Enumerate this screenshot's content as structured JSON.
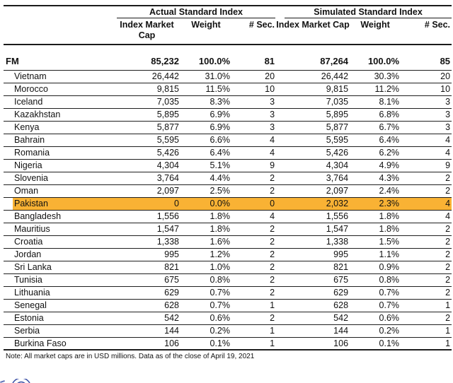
{
  "table": {
    "group_headers": [
      "Actual Standard Index",
      "Simulated Standard Index"
    ],
    "sub_headers": [
      "Index Market Cap",
      "Weight",
      "# Sec."
    ],
    "total_row": {
      "label": "FM",
      "values": [
        "85,232",
        "100.0%",
        "81",
        "87,264",
        "100.0%",
        "85"
      ]
    },
    "rows": [
      {
        "country": "Vietnam",
        "values": [
          "26,442",
          "31.0%",
          "20",
          "26,442",
          "30.3%",
          "20"
        ],
        "highlight": false
      },
      {
        "country": "Morocco",
        "values": [
          "9,815",
          "11.5%",
          "10",
          "9,815",
          "11.2%",
          "10"
        ],
        "highlight": false
      },
      {
        "country": "Iceland",
        "values": [
          "7,035",
          "8.3%",
          "3",
          "7,035",
          "8.1%",
          "3"
        ],
        "highlight": false
      },
      {
        "country": "Kazakhstan",
        "values": [
          "5,895",
          "6.9%",
          "3",
          "5,895",
          "6.8%",
          "3"
        ],
        "highlight": false
      },
      {
        "country": "Kenya",
        "values": [
          "5,877",
          "6.9%",
          "3",
          "5,877",
          "6.7%",
          "3"
        ],
        "highlight": false
      },
      {
        "country": "Bahrain",
        "values": [
          "5,595",
          "6.6%",
          "4",
          "5,595",
          "6.4%",
          "4"
        ],
        "highlight": false
      },
      {
        "country": "Romania",
        "values": [
          "5,426",
          "6.4%",
          "4",
          "5,426",
          "6.2%",
          "4"
        ],
        "highlight": false
      },
      {
        "country": "Nigeria",
        "values": [
          "4,304",
          "5.1%",
          "9",
          "4,304",
          "4.9%",
          "9"
        ],
        "highlight": false
      },
      {
        "country": "Slovenia",
        "values": [
          "3,764",
          "4.4%",
          "2",
          "3,764",
          "4.3%",
          "2"
        ],
        "highlight": false
      },
      {
        "country": "Oman",
        "values": [
          "2,097",
          "2.5%",
          "2",
          "2,097",
          "2.4%",
          "2"
        ],
        "highlight": false
      },
      {
        "country": "Pakistan",
        "values": [
          "0",
          "0.0%",
          "0",
          "2,032",
          "2.3%",
          "4"
        ],
        "highlight": true
      },
      {
        "country": "Bangladesh",
        "values": [
          "1,556",
          "1.8%",
          "4",
          "1,556",
          "1.8%",
          "4"
        ],
        "highlight": false
      },
      {
        "country": "Mauritius",
        "values": [
          "1,547",
          "1.8%",
          "2",
          "1,547",
          "1.8%",
          "2"
        ],
        "highlight": false
      },
      {
        "country": "Croatia",
        "values": [
          "1,338",
          "1.6%",
          "2",
          "1,338",
          "1.5%",
          "2"
        ],
        "highlight": false
      },
      {
        "country": "Jordan",
        "values": [
          "995",
          "1.2%",
          "2",
          "995",
          "1.1%",
          "2"
        ],
        "highlight": false
      },
      {
        "country": "Sri Lanka",
        "values": [
          "821",
          "1.0%",
          "2",
          "821",
          "0.9%",
          "2"
        ],
        "highlight": false
      },
      {
        "country": "Tunisia",
        "values": [
          "675",
          "0.8%",
          "2",
          "675",
          "0.8%",
          "2"
        ],
        "highlight": false
      },
      {
        "country": "Lithuania",
        "values": [
          "629",
          "0.7%",
          "2",
          "629",
          "0.7%",
          "2"
        ],
        "highlight": false
      },
      {
        "country": "Senegal",
        "values": [
          "628",
          "0.7%",
          "1",
          "628",
          "0.7%",
          "1"
        ],
        "highlight": false
      },
      {
        "country": "Estonia",
        "values": [
          "542",
          "0.6%",
          "2",
          "542",
          "0.6%",
          "2"
        ],
        "highlight": false
      },
      {
        "country": "Serbia",
        "values": [
          "144",
          "0.2%",
          "1",
          "144",
          "0.2%",
          "1"
        ],
        "highlight": false
      },
      {
        "country": "Burkina Faso",
        "values": [
          "106",
          "0.1%",
          "1",
          "106",
          "0.1%",
          "1"
        ],
        "highlight": false
      }
    ]
  },
  "footer": {
    "note": "Note: All market caps are in USD millions. Data as of the close of April 19, 2021",
    "logo_icon": "globe-logo"
  },
  "colors": {
    "highlight": "#f9b234",
    "logo_blue": "#3a50a5",
    "rule": "#1a1a1a"
  }
}
